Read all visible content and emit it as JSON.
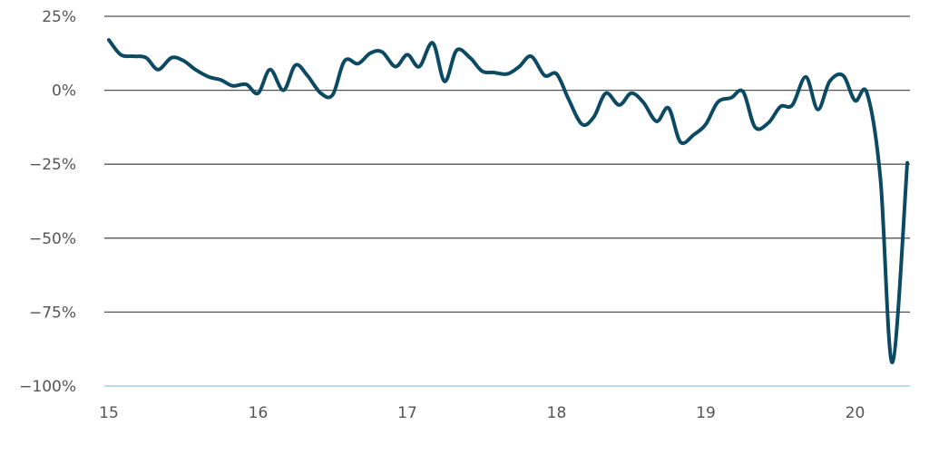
{
  "chart_data": {
    "type": "line",
    "title": "",
    "xlabel": "",
    "ylabel": "",
    "xlim": [
      15,
      20.35
    ],
    "ylim": [
      -100,
      25
    ],
    "y_ticks": [
      {
        "value": 25,
        "label": "25%"
      },
      {
        "value": 0,
        "label": "0%"
      },
      {
        "value": -25,
        "label": "−25%"
      },
      {
        "value": -50,
        "label": "−50%"
      },
      {
        "value": -75,
        "label": "−75%"
      },
      {
        "value": -100,
        "label": "−100%"
      }
    ],
    "x_ticks": [
      {
        "value": 15,
        "label": "15"
      },
      {
        "value": 16,
        "label": "16"
      },
      {
        "value": 17,
        "label": "17"
      },
      {
        "value": 18,
        "label": "18"
      },
      {
        "value": 19,
        "label": "19"
      },
      {
        "value": 20,
        "label": "20"
      }
    ],
    "grid": true,
    "legend": "none",
    "colors": {
      "line": "#0c4a63",
      "grid": "#555555",
      "baseline": "#a9cfe3",
      "text": "#555555"
    },
    "series": [
      {
        "values": [
          [
            15.0,
            17
          ],
          [
            15.08,
            12
          ],
          [
            15.17,
            11.5
          ],
          [
            15.25,
            11
          ],
          [
            15.33,
            7
          ],
          [
            15.42,
            11
          ],
          [
            15.5,
            10
          ],
          [
            15.58,
            7
          ],
          [
            15.67,
            4.5
          ],
          [
            15.75,
            3.5
          ],
          [
            15.83,
            1.5
          ],
          [
            15.92,
            2
          ],
          [
            16.0,
            -1
          ],
          [
            16.08,
            7
          ],
          [
            16.17,
            0
          ],
          [
            16.25,
            8.5
          ],
          [
            16.33,
            5
          ],
          [
            16.42,
            -1
          ],
          [
            16.5,
            -1.5
          ],
          [
            16.58,
            10
          ],
          [
            16.67,
            9
          ],
          [
            16.75,
            12.5
          ],
          [
            16.83,
            13
          ],
          [
            16.92,
            8
          ],
          [
            17.0,
            12
          ],
          [
            17.08,
            8
          ],
          [
            17.17,
            16
          ],
          [
            17.25,
            3
          ],
          [
            17.33,
            13.5
          ],
          [
            17.42,
            11
          ],
          [
            17.5,
            6.5
          ],
          [
            17.58,
            6
          ],
          [
            17.67,
            5.5
          ],
          [
            17.75,
            8
          ],
          [
            17.83,
            11.5
          ],
          [
            17.92,
            5
          ],
          [
            18.0,
            5.5
          ],
          [
            18.08,
            -3
          ],
          [
            18.17,
            -11.5
          ],
          [
            18.25,
            -9
          ],
          [
            18.33,
            -1
          ],
          [
            18.42,
            -5
          ],
          [
            18.5,
            -1
          ],
          [
            18.58,
            -4
          ],
          [
            18.67,
            -10.5
          ],
          [
            18.75,
            -6
          ],
          [
            18.83,
            -17.5
          ],
          [
            18.92,
            -15
          ],
          [
            19.0,
            -11.5
          ],
          [
            19.08,
            -4
          ],
          [
            19.17,
            -2.5
          ],
          [
            19.25,
            -0.5
          ],
          [
            19.33,
            -12.5
          ],
          [
            19.42,
            -11
          ],
          [
            19.5,
            -5.5
          ],
          [
            19.58,
            -5
          ],
          [
            19.67,
            4.5
          ],
          [
            19.75,
            -6.5
          ],
          [
            19.83,
            3
          ],
          [
            19.92,
            5
          ],
          [
            20.0,
            -3.5
          ],
          [
            20.08,
            -1
          ],
          [
            20.17,
            -30
          ],
          [
            20.25,
            -92
          ],
          [
            20.35,
            -24.5
          ]
        ]
      }
    ]
  }
}
